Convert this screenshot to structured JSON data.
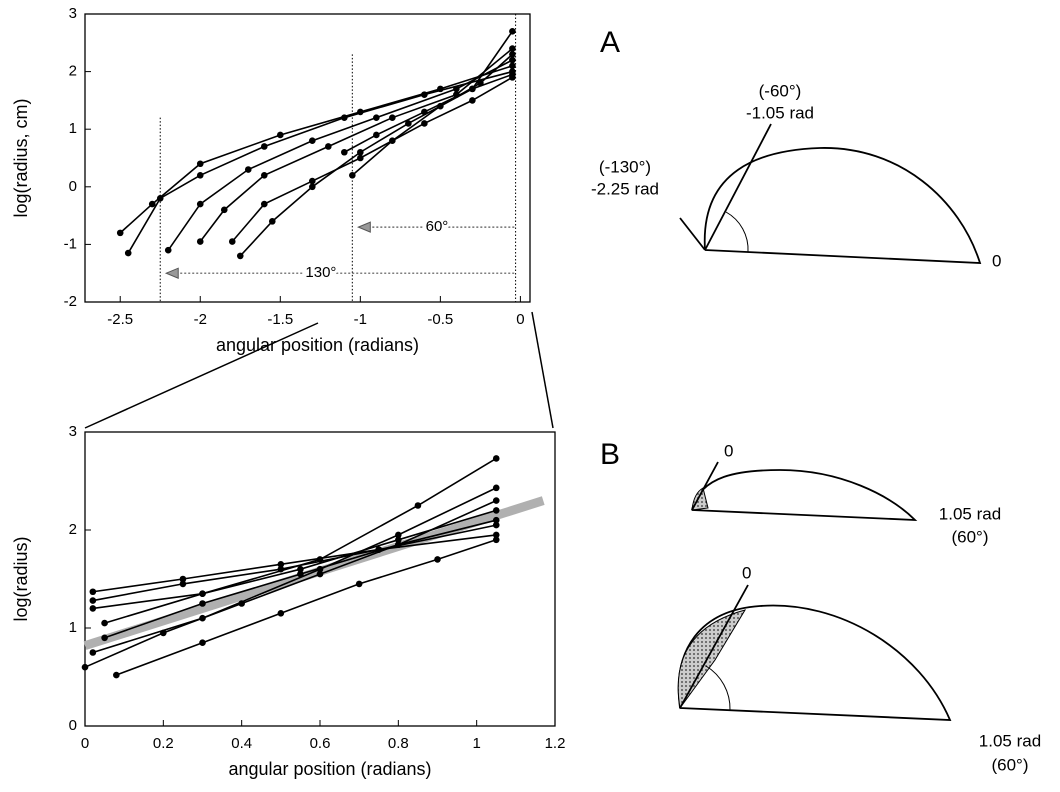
{
  "chart_data": [
    {
      "type": "line",
      "xlabel": "angular position (radians)",
      "ylabel": "log(radius, cm)",
      "xlim": [
        -2.72,
        0.06
      ],
      "ylim": [
        -2,
        3
      ],
      "xticks": [
        -2.5,
        -2,
        -1.5,
        -1,
        -0.5,
        0
      ],
      "yticks": [
        -2,
        -1,
        0,
        1,
        2,
        3
      ],
      "reference_lines": [
        -2.25,
        -1.05,
        -0.03
      ],
      "annotations": [
        {
          "text": "130°",
          "y": -1.5
        },
        {
          "text": "60°",
          "y": -0.7
        }
      ],
      "series": [
        {
          "color": "#000000",
          "x": [
            -2.5,
            -2.3,
            -2.0,
            -1.5,
            -1.0,
            -0.5,
            -0.05
          ],
          "values": [
            -0.8,
            -0.3,
            0.4,
            0.9,
            1.3,
            1.7,
            2.1
          ]
        },
        {
          "color": "#000000",
          "x": [
            -2.45,
            -2.25,
            -2.0,
            -1.6,
            -1.1,
            -0.6,
            -0.05
          ],
          "values": [
            -1.15,
            -0.2,
            0.2,
            0.7,
            1.2,
            1.6,
            2.0
          ]
        },
        {
          "color": "#000000",
          "x": [
            -2.2,
            -2.0,
            -1.7,
            -1.3,
            -0.9,
            -0.4,
            -0.05
          ],
          "values": [
            -1.1,
            -0.3,
            0.3,
            0.8,
            1.2,
            1.7,
            2.2
          ]
        },
        {
          "color": "#000000",
          "x": [
            -2.0,
            -1.85,
            -1.6,
            -1.2,
            -0.8,
            -0.4,
            -0.05
          ],
          "values": [
            -0.95,
            -0.4,
            0.2,
            0.7,
            1.2,
            1.6,
            2.4
          ]
        },
        {
          "color": "#000000",
          "x": [
            -1.8,
            -1.6,
            -1.3,
            -1.0,
            -0.6,
            -0.3,
            -0.05
          ],
          "values": [
            -0.95,
            -0.3,
            0.1,
            0.5,
            1.1,
            1.5,
            1.9
          ]
        },
        {
          "color": "#000000",
          "x": [
            -1.75,
            -1.55,
            -1.3,
            -1.0,
            -0.7,
            -0.3,
            -0.05
          ],
          "values": [
            -1.2,
            -0.6,
            0.0,
            0.6,
            1.1,
            1.7,
            2.7
          ]
        },
        {
          "color": "#000000",
          "x": [
            -1.05,
            -0.8,
            -0.5,
            -0.25,
            -0.05
          ],
          "values": [
            0.2,
            0.8,
            1.4,
            1.8,
            2.3
          ]
        },
        {
          "color": "#000000",
          "x": [
            -1.1,
            -0.9,
            -0.6,
            -0.3,
            -0.05
          ],
          "values": [
            0.6,
            0.9,
            1.3,
            1.7,
            1.95
          ]
        }
      ]
    },
    {
      "type": "line",
      "xlabel": "angular position (radians)",
      "ylabel": "log(radius)",
      "xlim": [
        0,
        1.2
      ],
      "ylim": [
        0,
        3
      ],
      "xticks": [
        0,
        0.2,
        0.4,
        0.6,
        0.8,
        1,
        1.2
      ],
      "yticks": [
        0,
        1,
        2,
        3
      ],
      "series": [
        {
          "color": "#b0b0b0",
          "markers": false,
          "x": [
            0,
            1.17
          ],
          "values": [
            0.82,
            2.3
          ]
        },
        {
          "color": "#000000",
          "x": [
            0.08,
            0.3,
            0.5,
            0.7,
            0.9,
            1.05
          ],
          "values": [
            0.52,
            0.85,
            1.15,
            1.45,
            1.7,
            1.9
          ]
        },
        {
          "color": "#000000",
          "x": [
            0,
            0.2,
            0.4,
            0.6,
            0.8,
            1.05
          ],
          "values": [
            0.6,
            0.95,
            1.25,
            1.55,
            1.85,
            2.1
          ]
        },
        {
          "color": "#000000",
          "x": [
            0.02,
            0.25,
            0.5,
            0.75,
            1.05
          ],
          "values": [
            1.37,
            1.5,
            1.65,
            1.8,
            1.95
          ]
        },
        {
          "color": "#000000",
          "x": [
            0.02,
            0.3,
            0.6,
            0.85,
            1.05
          ],
          "values": [
            1.2,
            1.35,
            1.7,
            2.25,
            2.73
          ]
        },
        {
          "color": "#000000",
          "x": [
            0.02,
            0.3,
            0.6,
            0.8,
            1.05
          ],
          "values": [
            0.75,
            1.1,
            1.6,
            1.95,
            2.43
          ]
        },
        {
          "color": "#000000",
          "x": [
            0.05,
            0.3,
            0.55,
            0.8,
            1.05
          ],
          "values": [
            1.05,
            1.35,
            1.6,
            1.9,
            2.2
          ]
        },
        {
          "color": "#000000",
          "x": [
            0.02,
            0.25,
            0.5,
            0.75,
            1.05
          ],
          "values": [
            1.28,
            1.45,
            1.6,
            1.8,
            2.05
          ]
        },
        {
          "color": "#000000",
          "x": [
            0.05,
            0.3,
            0.55,
            0.8,
            1.05
          ],
          "values": [
            0.9,
            1.25,
            1.55,
            1.85,
            2.3
          ]
        }
      ]
    }
  ],
  "diagrams": {
    "a": {
      "label": "A",
      "line1_top": "(-60°)",
      "line1_bottom": "-1.05 rad",
      "line2_top": "(-130°)",
      "line2_bottom": "-2.25 rad",
      "end": "0"
    },
    "b": {
      "label": "B",
      "upper": {
        "start": "0",
        "end_top": "1.05 rad",
        "end_bottom": "(60°)"
      },
      "lower": {
        "start": "0",
        "end_top": "1.05 rad",
        "end_bottom": "(60°)"
      }
    }
  }
}
